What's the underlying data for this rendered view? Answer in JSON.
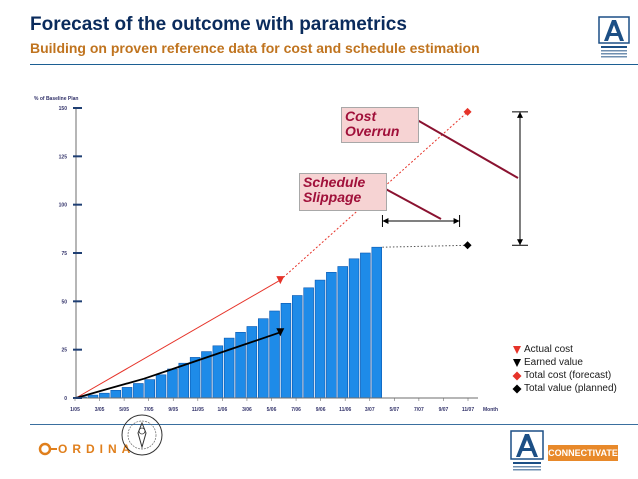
{
  "slide": {
    "title": "Forecast of the outcome with parametrics",
    "subtitle": "Building on proven reference data for cost and schedule estimation"
  },
  "chart_data": {
    "type": "bar",
    "title": "",
    "ylabel": "% of Baseline Plan",
    "xlabel": "Month",
    "ylim": [
      0,
      150
    ],
    "grid": false,
    "y_ticks": [
      "0",
      "25",
      "50",
      "75",
      "100",
      "125",
      "150"
    ],
    "x_ticks": [
      "1/05",
      "3/05",
      "5/05",
      "7/05",
      "9/05",
      "11/05",
      "1/06",
      "3/06",
      "5/06",
      "7/06",
      "9/06",
      "11/06",
      "3/07",
      "5/07",
      "7/07",
      "9/07",
      "11/07"
    ],
    "categories": [
      "1",
      "2",
      "3",
      "4",
      "5",
      "6",
      "7",
      "8",
      "9",
      "10",
      "11",
      "12",
      "13",
      "14",
      "15",
      "16",
      "17",
      "18",
      "19",
      "20",
      "21",
      "22",
      "23",
      "24",
      "25",
      "26",
      "27"
    ],
    "series": [
      {
        "name": "",
        "type": "bar",
        "values": [
          0.5,
          1.5,
          2.5,
          4,
          5.5,
          7.5,
          9.5,
          12,
          15,
          18,
          21,
          24,
          27,
          31,
          34,
          37,
          41,
          45,
          49,
          53,
          57,
          61,
          65,
          68,
          72,
          75,
          78
        ],
        "color": "#1e8be8"
      },
      {
        "name": "Actual cost",
        "type": "line",
        "x": [
          0,
          18
        ],
        "values": [
          0,
          61
        ],
        "color": "#e63329"
      },
      {
        "name": "Earned value",
        "type": "line",
        "x": [
          0,
          3,
          6,
          9,
          12,
          15,
          18
        ],
        "values": [
          0,
          5,
          10,
          16,
          22,
          28,
          34
        ],
        "color": "#000000"
      },
      {
        "name": "Total cost (forecast)",
        "type": "line",
        "x": [
          18,
          34.5
        ],
        "values": [
          61,
          148
        ],
        "color": "#e63329"
      },
      {
        "name": "Total value (planned)",
        "type": "line",
        "x": [
          27,
          34.5
        ],
        "values": [
          78,
          79
        ],
        "color": "#555555"
      }
    ],
    "annotations": [
      "Cost Overrun",
      "Schedule Slippage"
    ],
    "legend": {
      "placement": "bottom-right",
      "entries": [
        {
          "label": "Actual cost",
          "marker": "triangle-down",
          "color": "#e63329"
        },
        {
          "label": "Earned value",
          "marker": "triangle-down",
          "color": "#000000"
        },
        {
          "label": "Total cost (forecast)",
          "marker": "diamond",
          "color": "#e63329"
        },
        {
          "label": "Total value (planned)",
          "marker": "diamond",
          "color": "#000000"
        }
      ]
    }
  },
  "callouts": {
    "cost_line1": "Cost",
    "cost_line2": "Overrun",
    "schedule_line1": "Schedule",
    "schedule_line2": "Slippage"
  },
  "footer": {
    "ordina_logo": "ORDINA",
    "connectivate_logo": "CONNECTIVATE"
  },
  "colors": {
    "title": "#0a2b5c",
    "subtitle": "#c0741f",
    "accent_orange": "#e07f1c",
    "bar_blue": "#1e8be8",
    "callout_red": "#a0103a"
  }
}
